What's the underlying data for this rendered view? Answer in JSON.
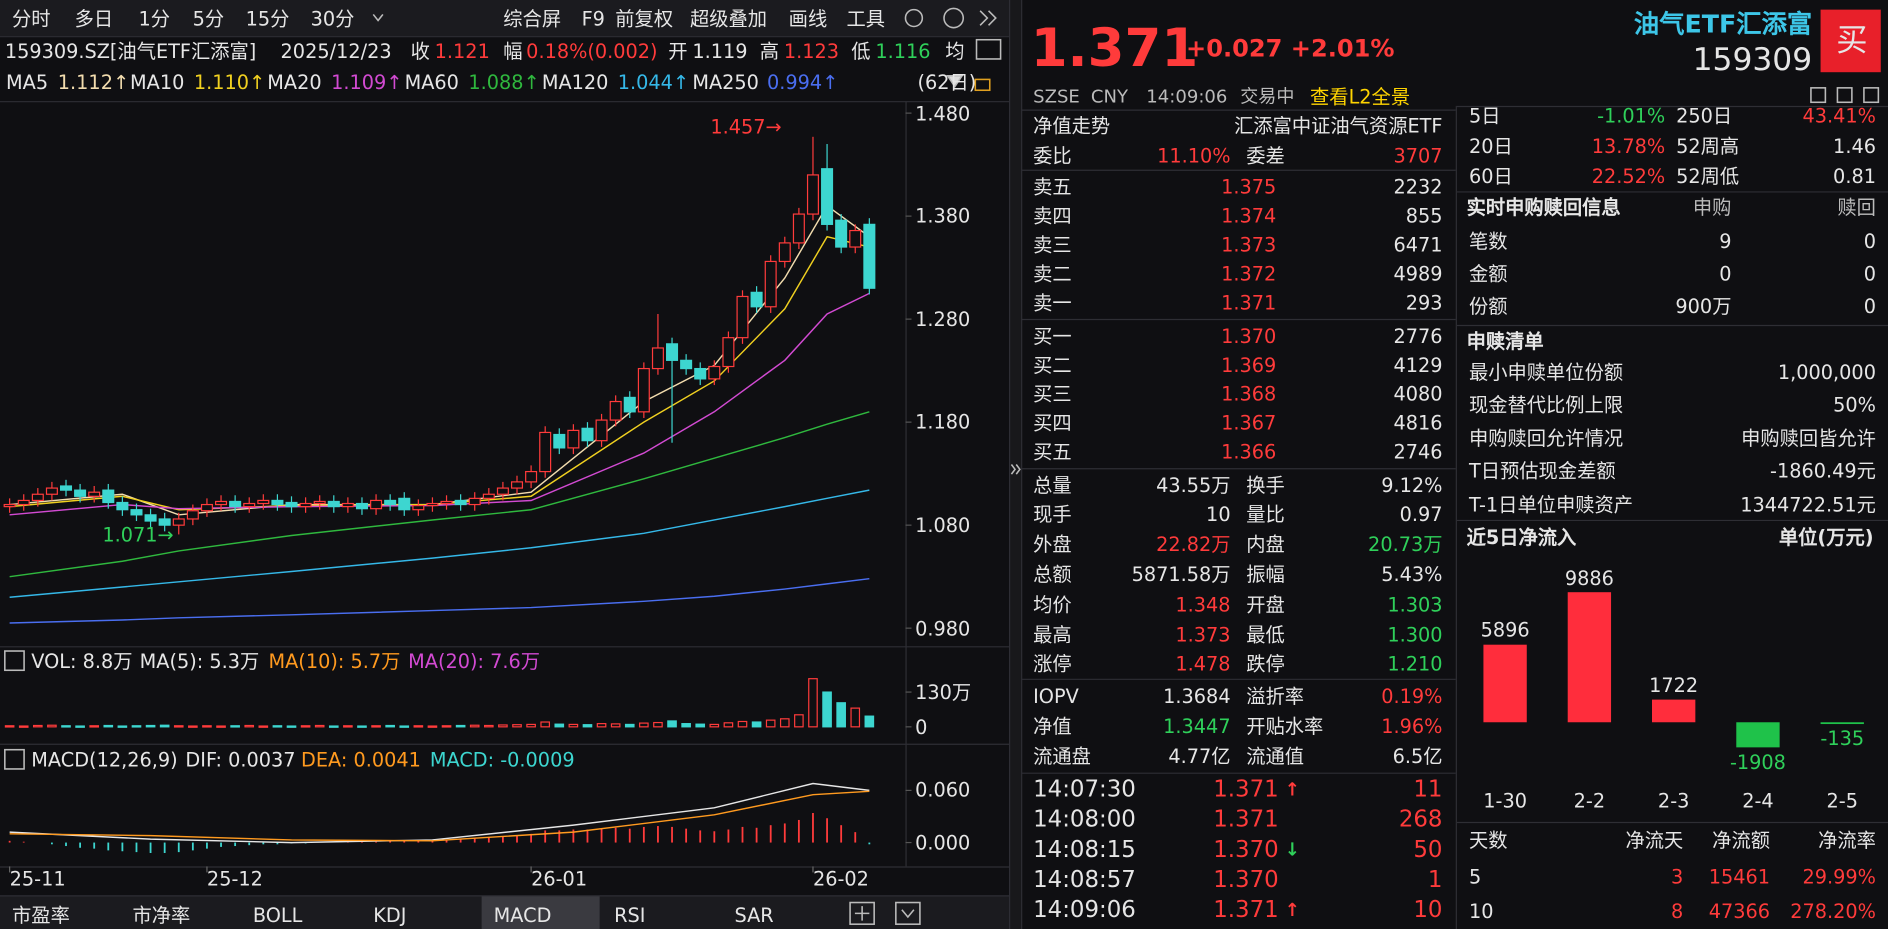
{
  "toolbar": {
    "periods": [
      "分时",
      "多日",
      "1分",
      "5分",
      "15分",
      "30分"
    ],
    "tools": [
      "综合屏",
      "F9",
      "前复权",
      "超级叠加",
      "画线",
      "工具"
    ]
  },
  "info_bar": {
    "code": "159309.SZ[油气ETF汇添富]",
    "date": "2025/12/23",
    "close_label": "收",
    "close": "1.121",
    "range_label": "幅",
    "range": "0.18%(0.002)",
    "open_label": "开",
    "open": "1.119",
    "high_label": "高",
    "high": "1.123",
    "low_label": "低",
    "low": "1.116",
    "avg_label": "均"
  },
  "quote": {
    "price": "1.371",
    "change": "+0.027",
    "change_pct": "+2.01%",
    "exchange": "SZSE",
    "currency": "CNY",
    "time": "14:09:06",
    "status": "交易中",
    "l2_link": "查看L2全景",
    "name": "油气ETF汇添富",
    "code": "159309",
    "buy_button": "买"
  },
  "order_book": {
    "nav_row": [
      "净值走势",
      "汇添富中证油气资源ETF"
    ],
    "ratio_row": [
      "委比",
      "11.10%",
      "委差",
      "3707"
    ],
    "asks": [
      [
        "卖五",
        "1.375",
        "2232"
      ],
      [
        "卖四",
        "1.374",
        "855"
      ],
      [
        "卖三",
        "1.373",
        "6471"
      ],
      [
        "卖二",
        "1.372",
        "4989"
      ],
      [
        "卖一",
        "1.371",
        "293"
      ]
    ],
    "bids": [
      [
        "买一",
        "1.370",
        "2776"
      ],
      [
        "买二",
        "1.369",
        "4129"
      ],
      [
        "买三",
        "1.368",
        "4080"
      ],
      [
        "买四",
        "1.367",
        "4816"
      ],
      [
        "买五",
        "1.366",
        "2746"
      ]
    ],
    "stats": [
      [
        "总量",
        "43.55万",
        "换手",
        "9.12%"
      ],
      [
        "现手",
        "10",
        "量比",
        "0.97"
      ],
      [
        "外盘",
        "22.82万",
        "内盘",
        "20.73万"
      ],
      [
        "总额",
        "5871.58万",
        "振幅",
        "5.43%"
      ],
      [
        "均价",
        "1.348",
        "开盘",
        "1.303"
      ],
      [
        "最高",
        "1.373",
        "最低",
        "1.300"
      ],
      [
        "涨停",
        "1.478",
        "跌停",
        "1.210"
      ]
    ],
    "fund_stats": [
      [
        "IOPV",
        "1.3684",
        "溢折率",
        "0.19%"
      ],
      [
        "净值",
        "1.3447",
        "开贴水率",
        "1.96%"
      ],
      [
        "流通盘",
        "4.77亿",
        "流通值",
        "6.5亿"
      ]
    ],
    "trades": [
      {
        "time": "14:07:30",
        "price": "1.371",
        "arrow": "↑",
        "volume": "11"
      },
      {
        "time": "14:08:00",
        "price": "1.371",
        "volume": "268"
      },
      {
        "time": "14:08:15",
        "price": "1.370",
        "arrow": "↓",
        "volume": "50"
      },
      {
        "time": "14:08:57",
        "price": "1.370",
        "volume": "1"
      },
      {
        "time": "14:09:06",
        "price": "1.371",
        "arrow": "↑",
        "volume": "10"
      }
    ]
  },
  "fund_panel": {
    "performance": [
      [
        "5日",
        "-1.01%",
        "250日",
        "43.41%"
      ],
      [
        "20日",
        "13.78%",
        "52周高",
        "1.46"
      ],
      [
        "60日",
        "22.52%",
        "52周低",
        "0.81"
      ]
    ],
    "subscription": {
      "title": "实时申购赎回信息",
      "columns": [
        "申购",
        "赎回"
      ],
      "rows": [
        [
          "笔数",
          "9",
          "0"
        ],
        [
          "金额",
          "0",
          "0"
        ],
        [
          "份额",
          "900万",
          "0"
        ]
      ]
    },
    "creation": {
      "title": "申赎清单",
      "rows": [
        [
          "最小申赎单位份额",
          "1,000,000"
        ],
        [
          "现金替代比例上限",
          "50%"
        ],
        [
          "申购赎回允许情况",
          "申购赎回皆允许"
        ],
        [
          "T日预估现金差额",
          "-1860.49元"
        ],
        [
          "T-1日单位申赎资产",
          "1344722.51元"
        ]
      ]
    },
    "flow_table": {
      "header": [
        "天数",
        "净流天",
        "净流额",
        "净流率"
      ],
      "rows": [
        [
          "5",
          "3",
          "15461",
          "29.99%"
        ],
        [
          "10",
          "8",
          "47366",
          "278.20%"
        ]
      ]
    }
  },
  "indicator_tabs": [
    "市盈率",
    "市净率",
    "BOLL",
    "KDJ",
    "MACD",
    "RSI",
    "SAR"
  ],
  "chart_data": [
    {
      "type": "candlestick",
      "open": [
        1.098,
        1.1,
        1.104,
        1.11,
        1.118,
        1.114,
        1.108,
        1.114,
        1.102,
        1.095,
        1.09,
        1.086,
        1.08,
        1.086,
        1.094,
        1.1,
        1.103,
        1.098,
        1.101,
        1.104,
        1.102,
        1.098,
        1.101,
        1.103,
        1.098,
        1.101,
        1.096,
        1.104,
        1.106,
        1.095,
        1.099,
        1.101,
        1.104,
        1.1,
        1.106,
        1.11,
        1.116,
        1.122,
        1.132,
        1.168,
        1.155,
        1.174,
        1.162,
        1.182,
        1.204,
        1.19,
        1.232,
        1.256,
        1.24,
        1.232,
        1.222,
        1.234,
        1.262,
        1.306,
        1.292,
        1.336,
        1.354,
        1.382,
        1.426,
        1.376,
        1.35,
        1.372
      ],
      "high": [
        1.106,
        1.11,
        1.116,
        1.122,
        1.124,
        1.12,
        1.118,
        1.12,
        1.108,
        1.101,
        1.096,
        1.092,
        1.092,
        1.1,
        1.106,
        1.109,
        1.109,
        1.107,
        1.11,
        1.11,
        1.108,
        1.107,
        1.109,
        1.109,
        1.107,
        1.107,
        1.11,
        1.11,
        1.112,
        1.105,
        1.107,
        1.109,
        1.11,
        1.112,
        1.116,
        1.122,
        1.128,
        1.138,
        1.176,
        1.174,
        1.178,
        1.18,
        1.188,
        1.206,
        1.21,
        1.238,
        1.285,
        1.262,
        1.246,
        1.238,
        1.24,
        1.268,
        1.308,
        1.312,
        1.342,
        1.36,
        1.388,
        1.457,
        1.45,
        1.382,
        1.372,
        1.378
      ],
      "low": [
        1.092,
        1.094,
        1.098,
        1.104,
        1.108,
        1.102,
        1.102,
        1.096,
        1.089,
        1.084,
        1.078,
        1.074,
        1.071,
        1.08,
        1.088,
        1.094,
        1.092,
        1.092,
        1.095,
        1.094,
        1.092,
        1.092,
        1.095,
        1.092,
        1.092,
        1.09,
        1.09,
        1.094,
        1.089,
        1.089,
        1.093,
        1.095,
        1.094,
        1.094,
        1.1,
        1.104,
        1.11,
        1.116,
        1.126,
        1.149,
        1.149,
        1.156,
        1.156,
        1.176,
        1.184,
        1.184,
        1.226,
        1.16,
        1.226,
        1.216,
        1.216,
        1.228,
        1.256,
        1.286,
        1.286,
        1.33,
        1.348,
        1.376,
        1.366,
        1.344,
        1.344,
        1.304
      ],
      "close": [
        1.1,
        1.104,
        1.11,
        1.116,
        1.114,
        1.108,
        1.112,
        1.102,
        1.095,
        1.09,
        1.084,
        1.08,
        1.086,
        1.094,
        1.1,
        1.103,
        1.098,
        1.101,
        1.104,
        1.1,
        1.098,
        1.101,
        1.103,
        1.098,
        1.101,
        1.096,
        1.104,
        1.1,
        1.095,
        1.099,
        1.101,
        1.103,
        1.1,
        1.106,
        1.11,
        1.116,
        1.122,
        1.132,
        1.17,
        1.155,
        1.172,
        1.162,
        1.182,
        1.2,
        1.19,
        1.232,
        1.252,
        1.24,
        1.232,
        1.222,
        1.234,
        1.262,
        1.302,
        1.292,
        1.336,
        1.354,
        1.382,
        1.42,
        1.372,
        1.35,
        1.366,
        1.31
      ],
      "up_color": "#ff3b3b",
      "down_color": "#3dd6d0",
      "xlim": [
        0,
        61
      ],
      "xticks": [
        {
          "value": 0,
          "label": "25-11"
        },
        {
          "value": 14,
          "label": "25-12"
        },
        {
          "value": 37,
          "label": "26-01"
        },
        {
          "value": 57,
          "label": "26-02"
        }
      ],
      "ylim": [
        0.98,
        1.48
      ],
      "yticks": [
        {
          "value": 1.48,
          "label": "1.480"
        },
        {
          "value": 1.38,
          "label": "1.380"
        },
        {
          "value": 1.28,
          "label": "1.280"
        },
        {
          "value": 1.18,
          "label": "1.180"
        },
        {
          "value": 1.08,
          "label": "1.080"
        },
        {
          "value": 0.98,
          "label": "0.980"
        }
      ],
      "grid": false,
      "series": [
        {
          "name": "MA5",
          "value_label": "1.112↑",
          "color": "#f2dcae",
          "x": [
            0,
            8,
            12,
            20,
            30,
            37,
            45,
            50,
            55,
            58,
            61
          ],
          "values": [
            1.1,
            1.11,
            1.09,
            1.1,
            1.1,
            1.112,
            1.2,
            1.235,
            1.32,
            1.39,
            1.36
          ]
        },
        {
          "name": "MA10",
          "value_label": "1.110↑",
          "color": "#f0d020",
          "x": [
            0,
            8,
            12,
            20,
            30,
            37,
            45,
            50,
            55,
            58,
            61
          ],
          "values": [
            1.098,
            1.108,
            1.095,
            1.099,
            1.1,
            1.108,
            1.18,
            1.22,
            1.29,
            1.36,
            1.35
          ]
        },
        {
          "name": "MA20",
          "value_label": "1.109↑",
          "color": "#d24ad2",
          "x": [
            0,
            8,
            12,
            20,
            30,
            37,
            45,
            50,
            55,
            58,
            61
          ],
          "values": [
            1.09,
            1.1,
            1.096,
            1.098,
            1.099,
            1.104,
            1.15,
            1.19,
            1.24,
            1.285,
            1.305
          ]
        },
        {
          "name": "MA60",
          "value_label": "1.088↑",
          "color": "#2fb83e",
          "x": [
            0,
            8,
            12,
            20,
            30,
            37,
            45,
            50,
            55,
            58,
            61
          ],
          "values": [
            1.03,
            1.045,
            1.055,
            1.07,
            1.085,
            1.095,
            1.125,
            1.145,
            1.165,
            1.178,
            1.19
          ]
        },
        {
          "name": "MA120",
          "value_label": "1.044↑",
          "color": "#35b8e8",
          "x": [
            0,
            8,
            12,
            20,
            30,
            37,
            45,
            50,
            55,
            58,
            61
          ],
          "values": [
            1.01,
            1.02,
            1.025,
            1.035,
            1.048,
            1.058,
            1.072,
            1.085,
            1.098,
            1.106,
            1.114
          ]
        },
        {
          "name": "MA250",
          "value_label": "0.994↑",
          "color": "#4a6ef0",
          "x": [
            0,
            8,
            12,
            20,
            30,
            37,
            45,
            50,
            55,
            58,
            61
          ],
          "values": [
            0.985,
            0.988,
            0.99,
            0.993,
            0.997,
            1.0,
            1.006,
            1.011,
            1.018,
            1.023,
            1.028
          ]
        }
      ],
      "period": "(62日)",
      "annotations": [
        "1.457→",
        "1.071→"
      ]
    },
    {
      "type": "bar",
      "title": "VOL: 8.8万",
      "indicators": [
        {
          "text": "MA(5): 5.3万",
          "color": "#e6e6e6"
        },
        {
          "text": "MA(10): 5.7万",
          "color": "#ff9a1f"
        },
        {
          "text": "MA(20): 7.6万",
          "color": "#d24ad2"
        }
      ],
      "values": [
        4,
        3,
        5,
        6,
        4,
        3,
        4,
        5,
        3,
        4,
        5,
        6,
        4,
        3,
        4,
        3,
        4,
        5,
        3,
        4,
        3,
        4,
        5,
        3,
        4,
        3,
        4,
        5,
        3,
        4,
        3,
        4,
        5,
        6,
        5,
        7,
        8,
        9,
        18,
        10,
        9,
        8,
        12,
        11,
        9,
        14,
        16,
        22,
        12,
        10,
        9,
        15,
        20,
        18,
        25,
        30,
        45,
        180,
        130,
        90,
        70,
        40
      ],
      "ylim": [
        0,
        180
      ],
      "yticks": [
        {
          "value": 130,
          "label": "130万"
        },
        0
      ]
    },
    {
      "type": "macd",
      "title": "MACD(12,26,9)",
      "indicators": [
        {
          "text": "DIF: 0.0037",
          "color": "#e6e6e6"
        },
        {
          "text": "DEA: 0.0041",
          "color": "#ff9a1f"
        },
        {
          "text": "MACD: -0.0009",
          "color": "#3dd6d0"
        }
      ],
      "histogram": [
        0.002,
        0.001,
        0.0,
        -0.002,
        -0.004,
        -0.006,
        -0.007,
        -0.009,
        -0.01,
        -0.011,
        -0.012,
        -0.012,
        -0.011,
        -0.009,
        -0.007,
        -0.005,
        -0.004,
        -0.003,
        -0.002,
        -0.002,
        -0.001,
        -0.001,
        0.0,
        0.0,
        0.001,
        0.001,
        0.001,
        0.002,
        0.002,
        0.002,
        0.003,
        0.003,
        0.004,
        0.005,
        0.006,
        0.007,
        0.008,
        0.01,
        0.014,
        0.014,
        0.015,
        0.015,
        0.016,
        0.017,
        0.016,
        0.018,
        0.019,
        0.018,
        0.016,
        0.014,
        0.013,
        0.015,
        0.018,
        0.017,
        0.02,
        0.022,
        0.026,
        0.034,
        0.028,
        0.02,
        0.012,
        -0.002
      ],
      "series": [
        {
          "color": "#e6e6e6",
          "x": [
            0,
            10,
            20,
            30,
            40,
            50,
            57,
            61
          ],
          "values": [
            0.012,
            0.004,
            0.0,
            0.003,
            0.02,
            0.04,
            0.068,
            0.06
          ]
        },
        {
          "color": "#ff9a1f",
          "x": [
            0,
            10,
            20,
            30,
            40,
            50,
            57,
            61
          ],
          "values": [
            0.01,
            0.008,
            0.003,
            0.002,
            0.012,
            0.032,
            0.055,
            0.059
          ]
        }
      ],
      "ylim": [
        -0.015,
        0.075
      ],
      "yticks": [
        {
          "value": 0.06,
          "label": "0.060"
        },
        {
          "value": 0,
          "label": "0.000"
        }
      ]
    },
    {
      "type": "bar",
      "title": "近5日净流入",
      "unit": "单位(万元)",
      "categories": [
        "1-30",
        "2-2",
        "2-3",
        "2-4",
        "2-5"
      ],
      "values": [
        5896,
        9886,
        1722,
        -1908,
        -135
      ],
      "pos_color": "#ff2d3c",
      "neg_color": "#1fc24a",
      "ylim": [
        -3000,
        12000
      ]
    }
  ]
}
